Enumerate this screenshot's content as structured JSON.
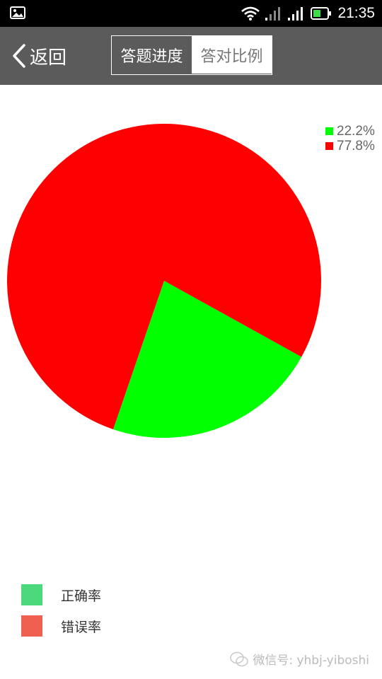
{
  "status_bar": {
    "time": "21:35",
    "icons": [
      "gallery-icon",
      "wifi-icon",
      "signal-weak-icon",
      "signal-icon",
      "battery-icon"
    ]
  },
  "nav": {
    "back_label": "返回",
    "tabs": [
      {
        "label": "答题进度",
        "active": true
      },
      {
        "label": "答对比例",
        "active": false
      }
    ]
  },
  "chart_data": {
    "type": "pie",
    "slices": [
      {
        "label": "正确率",
        "value": 22.2,
        "color": "#00ff00"
      },
      {
        "label": "错误率",
        "value": 77.8,
        "color": "#ff0000"
      }
    ],
    "percent_labels": [
      "22.2%",
      "77.8%"
    ]
  },
  "legend": [
    {
      "label": "正确率",
      "color": "#4cd97b"
    },
    {
      "label": "错误率",
      "color": "#f06050"
    }
  ],
  "watermark": "微信号: yhbj-yiboshi"
}
